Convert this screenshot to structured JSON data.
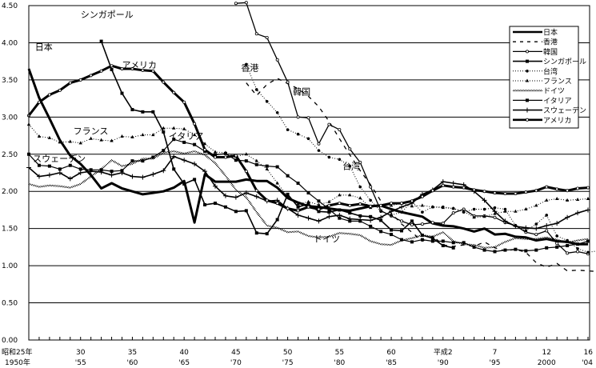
{
  "chart_data": {
    "type": "line",
    "title": "",
    "xlabel": "",
    "ylabel": "",
    "ylim": [
      0,
      4.5
    ],
    "xlim": [
      1950,
      2004
    ],
    "grid": true,
    "legend_position": "top-right",
    "y_ticks": [
      "0.00",
      "0.50",
      "1.00",
      "1.50",
      "2.00",
      "2.50",
      "3.00",
      "3.50",
      "4.00",
      "4.50"
    ],
    "y_tick_values": [
      0,
      0.5,
      1.0,
      1.5,
      2.0,
      2.5,
      3.0,
      3.5,
      4.0,
      4.5
    ],
    "x_ticks": [
      {
        "year": 1950,
        "top": "昭和25年",
        "bottom": "1950年"
      },
      {
        "year": 1955,
        "top": "30",
        "bottom": "'55"
      },
      {
        "year": 1960,
        "top": "35",
        "bottom": "'60"
      },
      {
        "year": 1965,
        "top": "40",
        "bottom": "'65"
      },
      {
        "year": 1970,
        "top": "45",
        "bottom": "'70"
      },
      {
        "year": 1975,
        "top": "50",
        "bottom": "'75"
      },
      {
        "year": 1980,
        "top": "55",
        "bottom": "'80"
      },
      {
        "year": 1985,
        "top": "60",
        "bottom": "'85"
      },
      {
        "year": 1990,
        "top": "平成2",
        "bottom": "'90"
      },
      {
        "year": 1995,
        "top": "7",
        "bottom": "'95"
      },
      {
        "year": 2000,
        "top": "12",
        "bottom": "2000"
      },
      {
        "year": 2004,
        "top": "16",
        "bottom": "'04"
      }
    ],
    "series": [
      {
        "name": "日本",
        "style": "thick",
        "start": 1950,
        "values": [
          3.65,
          3.26,
          2.98,
          2.69,
          2.48,
          2.37,
          2.22,
          2.04,
          2.11,
          2.04,
          2.0,
          1.96,
          1.98,
          2.0,
          2.05,
          2.14,
          1.58,
          2.23,
          2.13,
          2.13,
          2.13,
          2.16,
          2.14,
          2.14,
          2.05,
          1.91,
          1.85,
          1.8,
          1.79,
          1.77,
          1.75,
          1.74,
          1.77,
          1.8,
          1.81,
          1.76,
          1.72,
          1.69,
          1.66,
          1.57,
          1.54,
          1.53,
          1.5,
          1.46,
          1.5,
          1.42,
          1.43,
          1.39,
          1.38,
          1.34,
          1.36,
          1.33,
          1.32,
          1.29,
          1.29
        ]
      },
      {
        "name": "香港",
        "style": "dashed",
        "start": 1971,
        "values": [
          3.46,
          3.29,
          3.44,
          3.52,
          3.45,
          3.38,
          3.28,
          3.14,
          2.94,
          2.71,
          2.49,
          2.28,
          2.09,
          1.87,
          1.71,
          1.56,
          1.45,
          1.33,
          1.4,
          1.28,
          1.26,
          1.28,
          1.26,
          1.32,
          1.24,
          1.2,
          1.22,
          1.18,
          1.04,
          0.98,
          1.03,
          0.93,
          0.94,
          0.93,
          0.92
        ]
      },
      {
        "name": "韓国",
        "style": "thin-circle",
        "start": 1970,
        "values": [
          4.53,
          4.54,
          4.12,
          4.07,
          3.77,
          3.47,
          3.0,
          2.99,
          2.64,
          2.9,
          2.83,
          2.57,
          2.39,
          2.06,
          1.74,
          1.67,
          1.6,
          1.55,
          1.56,
          1.58,
          1.57,
          1.71,
          1.76,
          1.67,
          1.67,
          1.65,
          1.58,
          1.54,
          1.45,
          1.42,
          1.47,
          1.3,
          1.17,
          1.19,
          1.16
        ]
      },
      {
        "name": "シンガポール",
        "style": "solid-square",
        "start": 1957,
        "values": [
          4.02,
          3.64,
          3.32,
          3.1,
          3.07,
          3.07,
          2.8,
          2.3,
          2.1,
          2.16,
          1.82,
          1.84,
          1.79,
          1.73,
          1.74,
          1.44,
          1.43,
          1.62,
          1.96,
          1.79,
          1.83,
          1.73,
          1.72,
          1.75,
          1.71,
          1.67,
          1.66,
          1.61,
          1.48,
          1.47,
          1.6,
          1.41,
          1.37,
          1.27,
          1.24
        ]
      },
      {
        "name": "台湾",
        "style": "dotted-circle",
        "start": 1971,
        "values": [
          3.71,
          3.37,
          3.21,
          3.06,
          2.83,
          2.77,
          2.71,
          2.55,
          2.46,
          2.43,
          2.34,
          2.06,
          1.88,
          1.73,
          1.68,
          1.72,
          1.86,
          1.72,
          1.79,
          1.79,
          1.77,
          1.72,
          1.76,
          1.76,
          1.78,
          1.76,
          1.54,
          1.47,
          1.56,
          1.68,
          1.4,
          1.34,
          1.23,
          1.18,
          1.2
        ]
      },
      {
        "name": "フランス",
        "style": "dotted-triangle",
        "start": 1950,
        "values": [
          2.9,
          2.74,
          2.72,
          2.66,
          2.67,
          2.65,
          2.71,
          2.69,
          2.68,
          2.74,
          2.73,
          2.76,
          2.76,
          2.85,
          2.85,
          2.84,
          2.76,
          2.64,
          2.53,
          2.52,
          2.47,
          2.5,
          2.41,
          2.3,
          2.11,
          1.93,
          1.83,
          1.86,
          1.82,
          1.86,
          1.95,
          1.95,
          1.91,
          1.78,
          1.81,
          1.81,
          1.84,
          1.8,
          1.81,
          1.79,
          1.78,
          1.77,
          1.73,
          1.65,
          1.66,
          1.7,
          1.73,
          1.73,
          1.76,
          1.81,
          1.88,
          1.9,
          1.88,
          1.89,
          1.9
        ]
      },
      {
        "name": "ドイツ",
        "style": "hatched",
        "start": 1950,
        "values": [
          2.1,
          2.06,
          2.08,
          2.07,
          2.05,
          2.1,
          2.2,
          2.3,
          2.42,
          2.34,
          2.37,
          2.44,
          2.44,
          2.52,
          2.54,
          2.51,
          2.54,
          2.49,
          2.38,
          2.21,
          2.02,
          1.92,
          1.72,
          1.54,
          1.51,
          1.45,
          1.46,
          1.4,
          1.38,
          1.39,
          1.44,
          1.43,
          1.41,
          1.33,
          1.29,
          1.28,
          1.34,
          1.37,
          1.41,
          1.39,
          1.45,
          1.33,
          1.29,
          1.28,
          1.24,
          1.25,
          1.32,
          1.37,
          1.36,
          1.36,
          1.38,
          1.35,
          1.31,
          1.34,
          1.36
        ]
      },
      {
        "name": "イタリア",
        "style": "solid-square-thin",
        "start": 1950,
        "values": [
          2.5,
          2.35,
          2.34,
          2.3,
          2.35,
          2.3,
          2.29,
          2.29,
          2.27,
          2.28,
          2.41,
          2.41,
          2.46,
          2.55,
          2.7,
          2.66,
          2.63,
          2.54,
          2.49,
          2.51,
          2.42,
          2.41,
          2.36,
          2.34,
          2.33,
          2.21,
          2.11,
          1.98,
          1.87,
          1.76,
          1.64,
          1.6,
          1.6,
          1.53,
          1.46,
          1.42,
          1.35,
          1.32,
          1.35,
          1.33,
          1.33,
          1.31,
          1.31,
          1.25,
          1.21,
          1.19,
          1.21,
          1.22,
          1.2,
          1.21,
          1.24,
          1.25,
          1.27,
          1.29,
          1.33
        ]
      },
      {
        "name": "スウェーデン",
        "style": "solid-plus",
        "start": 1950,
        "values": [
          2.32,
          2.2,
          2.22,
          2.25,
          2.17,
          2.25,
          2.27,
          2.26,
          2.22,
          2.25,
          2.2,
          2.19,
          2.23,
          2.28,
          2.47,
          2.42,
          2.37,
          2.27,
          2.07,
          1.94,
          1.92,
          1.98,
          1.93,
          1.87,
          1.88,
          1.77,
          1.68,
          1.64,
          1.6,
          1.66,
          1.68,
          1.63,
          1.62,
          1.61,
          1.65,
          1.73,
          1.79,
          1.84,
          1.96,
          2.02,
          2.13,
          2.11,
          2.09,
          2.0,
          1.88,
          1.73,
          1.6,
          1.53,
          1.51,
          1.5,
          1.54,
          1.57,
          1.65,
          1.71,
          1.75
        ]
      },
      {
        "name": "アメリカ",
        "style": "thick-circle",
        "start": 1950,
        "values": [
          3.02,
          3.2,
          3.3,
          3.36,
          3.46,
          3.5,
          3.56,
          3.62,
          3.69,
          3.65,
          3.65,
          3.63,
          3.62,
          3.47,
          3.33,
          3.2,
          2.91,
          2.56,
          2.46,
          2.46,
          2.48,
          2.27,
          2.01,
          1.88,
          1.84,
          1.77,
          1.74,
          1.79,
          1.76,
          1.81,
          1.84,
          1.81,
          1.83,
          1.8,
          1.81,
          1.84,
          1.84,
          1.87,
          1.93,
          2.01,
          2.08,
          2.06,
          2.05,
          2.02,
          2.0,
          1.98,
          1.97,
          1.97,
          1.99,
          2.01,
          2.06,
          2.03,
          2.01,
          2.04,
          2.05
        ]
      }
    ],
    "annotations": [
      {
        "text": "日本",
        "year": 1950.6,
        "value": 3.9
      },
      {
        "text": "アメリカ",
        "year": 1959.0,
        "value": 3.66
      },
      {
        "text": "シンガポール",
        "year": 1955.0,
        "value": 4.34
      },
      {
        "text": "香港",
        "year": 1970.5,
        "value": 3.62
      },
      {
        "text": "韓国",
        "year": 1975.5,
        "value": 3.3
      },
      {
        "text": "フランス",
        "year": 1954.3,
        "value": 2.77
      },
      {
        "text": "イタリア",
        "year": 1963.5,
        "value": 2.7
      },
      {
        "text": "スウェーデン",
        "year": 1950.4,
        "value": 2.4
      },
      {
        "text": "台湾",
        "year": 1980.3,
        "value": 2.3
      },
      {
        "text": "ドイツ",
        "year": 1977.5,
        "value": 1.32
      }
    ]
  }
}
